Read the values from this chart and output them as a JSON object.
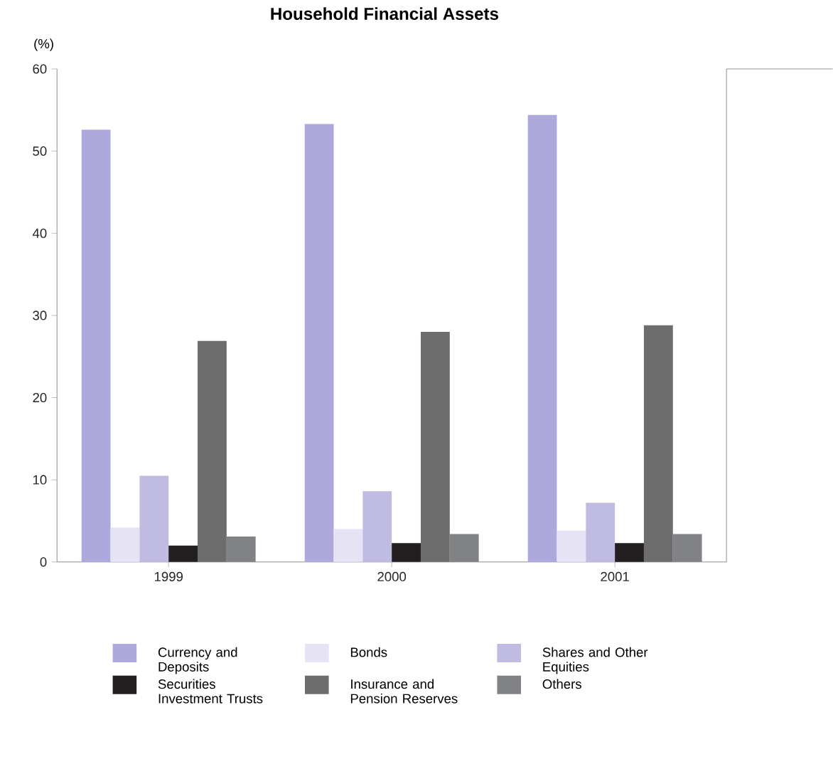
{
  "chart_data": {
    "type": "bar",
    "title": "Household Financial Assets",
    "ylabel": "(%)",
    "categories": [
      "1999",
      "2000",
      "2001"
    ],
    "series": [
      {
        "name": "Currency and Deposits",
        "color": "#aea9dc",
        "values": [
          52.6,
          53.3,
          54.4
        ]
      },
      {
        "name": "Bonds",
        "color": "#e6e3f4",
        "values": [
          4.2,
          4.0,
          3.8
        ]
      },
      {
        "name": "Shares and Other Equities",
        "color": "#c0bbe0",
        "values": [
          10.5,
          8.6,
          7.2
        ]
      },
      {
        "name": "Securities Investment Trusts",
        "color": "#231f20",
        "values": [
          2.0,
          2.3,
          2.3
        ]
      },
      {
        "name": "Insurance and Pension Reserves",
        "color": "#6d6d6d",
        "values": [
          26.9,
          28.0,
          28.8
        ]
      },
      {
        "name": "Others",
        "color": "#808285",
        "values": [
          3.1,
          3.4,
          3.4
        ]
      }
    ],
    "ylim": [
      0,
      60
    ],
    "yticks": [
      0,
      10,
      20,
      30,
      40,
      50,
      60
    ],
    "grid": false,
    "legend": "bottom"
  }
}
